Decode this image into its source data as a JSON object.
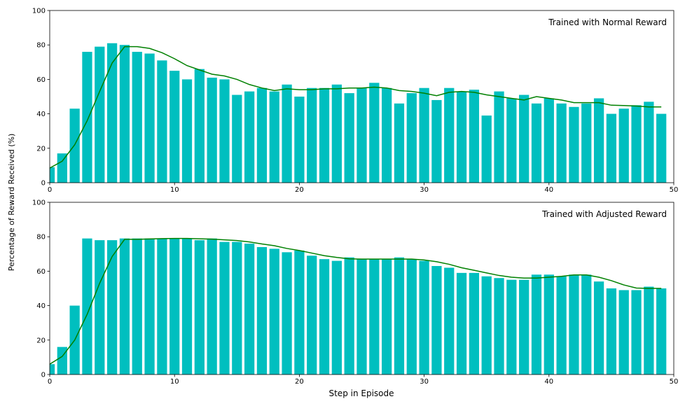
{
  "figure": {
    "ylabel": "Percentage of Reward Received (%)",
    "xlabel": "Step in Episode"
  },
  "chart_data": [
    {
      "type": "bar",
      "title": "",
      "legend": "Trained with Normal Reward",
      "legend_position": "top-right",
      "x": [
        0,
        1,
        2,
        3,
        4,
        5,
        6,
        7,
        8,
        9,
        10,
        11,
        12,
        13,
        14,
        15,
        16,
        17,
        18,
        19,
        20,
        21,
        22,
        23,
        24,
        25,
        26,
        27,
        28,
        29,
        30,
        31,
        32,
        33,
        34,
        35,
        36,
        37,
        38,
        39,
        40,
        41,
        42,
        43,
        44,
        45,
        46,
        47,
        48,
        49
      ],
      "values": [
        9,
        17,
        43,
        76,
        79,
        81,
        80,
        76,
        75,
        71,
        65,
        60,
        66,
        61,
        60,
        51,
        53,
        55,
        53,
        57,
        50,
        55,
        55,
        57,
        52,
        55,
        58,
        55,
        46,
        52,
        55,
        48,
        55,
        53,
        54,
        39,
        53,
        49,
        51,
        46,
        49,
        46,
        44,
        46,
        49,
        40,
        43,
        45,
        47,
        40
      ],
      "smooth_line": [
        8.5,
        12.5,
        22,
        36,
        53,
        69.5,
        79,
        79,
        78,
        75.5,
        72,
        68,
        65.5,
        63,
        62,
        60,
        57,
        55,
        53.5,
        54.5,
        54,
        54,
        54.5,
        54.5,
        55,
        55,
        55.5,
        55,
        53.5,
        53,
        52,
        50.5,
        52.5,
        53,
        52.5,
        51,
        50,
        49,
        48,
        50,
        49,
        48,
        46.5,
        46.5,
        46.5,
        45,
        44.8,
        44.5,
        44,
        44
      ],
      "bar_color": "#00bfbf",
      "line_color": "#008000",
      "xlim": [
        0,
        50
      ],
      "ylim": [
        0,
        100
      ],
      "xticks": [
        "0",
        "10",
        "20",
        "30",
        "40",
        "50"
      ],
      "yticks": [
        "0",
        "20",
        "40",
        "60",
        "80",
        "100"
      ],
      "grid": false
    },
    {
      "type": "bar",
      "title": "",
      "legend": "Trained with Adjusted Reward",
      "legend_position": "top-right",
      "x": [
        0,
        1,
        2,
        3,
        4,
        5,
        6,
        7,
        8,
        9,
        10,
        11,
        12,
        13,
        14,
        15,
        16,
        17,
        18,
        19,
        20,
        21,
        22,
        23,
        24,
        25,
        26,
        27,
        28,
        29,
        30,
        31,
        32,
        33,
        34,
        35,
        36,
        37,
        38,
        39,
        40,
        41,
        42,
        43,
        44,
        45,
        46,
        47,
        48,
        49
      ],
      "values": [
        6,
        16,
        40,
        79,
        78,
        78,
        79,
        79,
        79,
        79,
        79,
        79,
        78,
        79,
        77,
        77,
        76,
        74,
        73,
        71,
        72,
        69,
        67,
        66,
        68,
        67,
        67,
        67,
        68,
        67,
        66,
        63,
        62,
        59,
        59,
        57,
        56,
        55,
        55,
        58,
        58,
        57,
        58,
        58,
        54,
        50,
        49,
        49,
        51,
        50
      ],
      "smooth_line": [
        6,
        10.5,
        20,
        35,
        53,
        68.5,
        78.5,
        78.5,
        78.7,
        78.9,
        79,
        79,
        78.8,
        78.6,
        78.2,
        77.8,
        77,
        75.8,
        74.8,
        73.2,
        72,
        70.5,
        69,
        68,
        67.2,
        67,
        67,
        67,
        67,
        67,
        66.5,
        65.5,
        64,
        62,
        60.5,
        59,
        57.5,
        56.5,
        56,
        56,
        56.5,
        57,
        57.8,
        57.8,
        56.5,
        54.5,
        52,
        50.2,
        50,
        50
      ],
      "bar_color": "#00bfbf",
      "line_color": "#008000",
      "xlim": [
        0,
        50
      ],
      "ylim": [
        0,
        100
      ],
      "xticks": [
        "0",
        "10",
        "20",
        "30",
        "40",
        "50"
      ],
      "yticks": [
        "0",
        "20",
        "40",
        "60",
        "80",
        "100"
      ],
      "grid": false
    }
  ]
}
